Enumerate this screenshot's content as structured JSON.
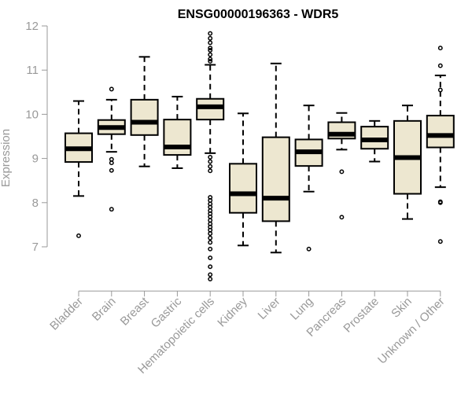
{
  "chart_data": {
    "type": "box",
    "title": "ENSG00000196363 - WDR5",
    "xlabel": "",
    "ylabel": "Expression",
    "ylim": [
      6.0,
      12.0
    ],
    "yticks": [
      7,
      8,
      9,
      10,
      11,
      12
    ],
    "grid": false,
    "colors": {
      "box_fill": "#ede7d0",
      "stroke": "#000000",
      "axis": "#999999",
      "label": "#999999"
    },
    "categories": [
      "Bladder",
      "Brain",
      "Breast",
      "Gastric",
      "Hematopoietic cells",
      "Kidney",
      "Liver",
      "Lung",
      "Pancreas",
      "Prostate",
      "Skin",
      "Unknown / Other"
    ],
    "boxes": [
      {
        "name": "Bladder",
        "whisker_low": 8.15,
        "q1": 8.92,
        "median": 9.22,
        "q3": 9.57,
        "whisker_high": 10.3,
        "outliers": [
          7.25
        ]
      },
      {
        "name": "Brain",
        "whisker_low": 9.15,
        "q1": 9.55,
        "median": 9.7,
        "q3": 9.87,
        "whisker_high": 10.33,
        "outliers": [
          7.85,
          8.73,
          8.9,
          8.98,
          10.57
        ]
      },
      {
        "name": "Breast",
        "whisker_low": 8.82,
        "q1": 9.53,
        "median": 9.82,
        "q3": 10.33,
        "whisker_high": 11.3,
        "outliers": []
      },
      {
        "name": "Gastric",
        "whisker_low": 8.78,
        "q1": 9.08,
        "median": 9.26,
        "q3": 9.88,
        "whisker_high": 10.4,
        "outliers": []
      },
      {
        "name": "Hematopoietic cells",
        "whisker_low": 9.12,
        "q1": 9.88,
        "median": 10.17,
        "q3": 10.35,
        "whisker_high": 11.12,
        "outliers": [
          6.27,
          6.37,
          6.55,
          6.75,
          6.95,
          7.1,
          7.2,
          7.3,
          7.38,
          7.45,
          7.52,
          7.6,
          7.68,
          7.75,
          7.82,
          7.9,
          7.97,
          8.05,
          8.12,
          8.72,
          8.82,
          8.93,
          9.03,
          11.2,
          11.25,
          11.35,
          11.45,
          11.5,
          11.62,
          11.72,
          11.83
        ]
      },
      {
        "name": "Kidney",
        "whisker_low": 7.03,
        "q1": 7.77,
        "median": 8.2,
        "q3": 8.88,
        "whisker_high": 10.02,
        "outliers": []
      },
      {
        "name": "Liver",
        "whisker_low": 6.87,
        "q1": 7.58,
        "median": 8.1,
        "q3": 9.48,
        "whisker_high": 11.15,
        "outliers": []
      },
      {
        "name": "Lung",
        "whisker_low": 8.25,
        "q1": 8.83,
        "median": 9.15,
        "q3": 9.43,
        "whisker_high": 10.2,
        "outliers": [
          6.95
        ]
      },
      {
        "name": "Pancreas",
        "whisker_low": 9.2,
        "q1": 9.45,
        "median": 9.55,
        "q3": 9.82,
        "whisker_high": 10.03,
        "outliers": [
          7.67,
          8.7
        ]
      },
      {
        "name": "Prostate",
        "whisker_low": 8.93,
        "q1": 9.22,
        "median": 9.42,
        "q3": 9.72,
        "whisker_high": 9.85,
        "outliers": []
      },
      {
        "name": "Skin",
        "whisker_low": 7.63,
        "q1": 8.2,
        "median": 9.02,
        "q3": 9.85,
        "whisker_high": 10.2,
        "outliers": []
      },
      {
        "name": "Unknown / Other",
        "whisker_low": 8.35,
        "q1": 9.25,
        "median": 9.52,
        "q3": 9.97,
        "whisker_high": 10.88,
        "outliers": [
          7.12,
          8.0,
          8.02,
          10.55,
          11.1,
          11.5
        ]
      }
    ]
  }
}
